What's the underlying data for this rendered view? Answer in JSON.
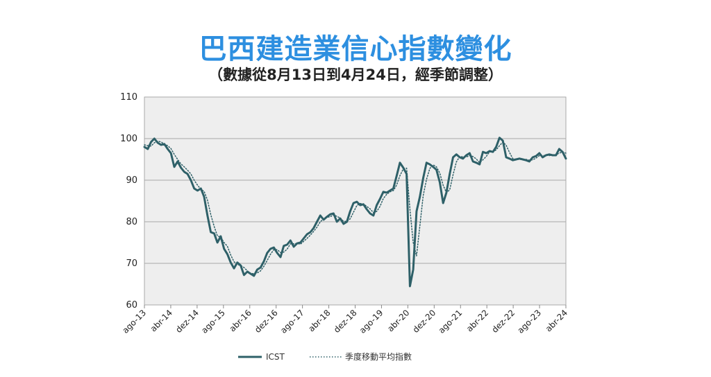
{
  "chart_data": {
    "type": "line",
    "title": "巴西建造業信心指數變化",
    "subtitle": "（數據從8月13日到4月24日，經季節調整）",
    "xlabel": "",
    "ylabel": "",
    "ylim": [
      60,
      110
    ],
    "yticks": [
      60,
      70,
      80,
      90,
      100,
      110
    ],
    "xticks": [
      "ago-13",
      "abr-14",
      "dez-14",
      "ago-15",
      "abr-16",
      "dez-16",
      "ago-17",
      "abr-18",
      "dez-18",
      "ago-19",
      "abr-20",
      "dez-20",
      "ago-21",
      "abr-22",
      "dez-22",
      "ago-23",
      "abr-24"
    ],
    "grid": true,
    "legend_position": "bottom",
    "series": [
      {
        "name": "ICST",
        "color": "#2e6068",
        "style": "solid",
        "values": [
          98.0,
          97.5,
          99.2,
          100.0,
          99.0,
          98.5,
          98.7,
          97.5,
          96.5,
          93.2,
          94.5,
          93.0,
          92.0,
          91.5,
          90.0,
          88.0,
          87.5,
          88.0,
          86.0,
          81.5,
          77.5,
          77.2,
          75.0,
          76.5,
          73.5,
          72.2,
          70.2,
          68.8,
          70.2,
          69.5,
          67.2,
          68.0,
          67.5,
          67.0,
          68.5,
          69.0,
          70.5,
          72.5,
          73.5,
          73.8,
          72.5,
          71.5,
          74.2,
          74.5,
          75.5,
          74.0,
          74.8,
          75.0,
          76.0,
          77.0,
          77.5,
          78.5,
          80.0,
          81.5,
          80.5,
          81.2,
          81.8,
          82.0,
          80.0,
          80.8,
          79.5,
          80.0,
          82.5,
          84.5,
          84.8,
          84.0,
          84.2,
          83.0,
          82.0,
          81.5,
          84.0,
          85.5,
          87.2,
          87.0,
          87.5,
          88.0,
          91.0,
          94.2,
          93.0,
          91.5,
          64.5,
          68.5,
          82.5,
          86.0,
          90.5,
          94.2,
          93.8,
          93.2,
          92.5,
          89.5,
          84.5,
          87.0,
          91.5,
          95.5,
          96.2,
          95.5,
          95.2,
          96.0,
          96.5,
          94.5,
          94.2,
          93.8,
          96.8,
          96.5,
          97.0,
          96.8,
          98.0,
          100.2,
          99.5,
          95.5,
          95.2,
          94.8,
          95.0,
          95.2,
          95.0,
          94.8,
          94.5,
          95.5,
          95.8,
          96.5,
          95.5,
          96.0,
          96.2,
          96.0,
          96.0,
          97.5,
          96.8,
          95.2
        ]
      },
      {
        "name": "季度移動平均指數",
        "color": "#2e6068",
        "style": "dotted",
        "values": [
          98.5,
          98.3,
          98.2,
          99.0,
          99.4,
          99.2,
          98.7,
          98.3,
          97.6,
          96.2,
          95.0,
          93.9,
          93.2,
          92.4,
          91.5,
          90.0,
          88.8,
          87.8,
          87.3,
          85.2,
          81.7,
          78.9,
          76.6,
          76.3,
          75.0,
          74.1,
          72.0,
          70.4,
          69.7,
          69.5,
          69.0,
          68.2,
          67.6,
          67.5,
          67.7,
          68.2,
          69.3,
          70.7,
          72.2,
          73.3,
          73.3,
          72.6,
          72.7,
          73.4,
          74.7,
          74.7,
          74.8,
          74.6,
          75.3,
          76.0,
          76.8,
          77.7,
          78.7,
          80.0,
          80.7,
          81.1,
          81.2,
          81.7,
          81.3,
          80.9,
          80.1,
          80.1,
          80.7,
          82.3,
          83.9,
          84.4,
          84.3,
          83.7,
          83.1,
          82.2,
          82.5,
          83.7,
          85.6,
          86.6,
          87.2,
          87.5,
          88.8,
          91.1,
          92.7,
          92.9,
          83.0,
          75.0,
          71.8,
          79.0,
          86.3,
          90.2,
          92.8,
          93.7,
          93.2,
          91.7,
          88.8,
          87.0,
          87.7,
          91.3,
          94.4,
          95.7,
          95.6,
          95.6,
          95.9,
          95.7,
          95.1,
          94.2,
          94.9,
          95.7,
          96.8,
          96.8,
          97.3,
          98.3,
          99.2,
          98.4,
          96.7,
          95.2,
          95.0,
          95.0,
          95.0,
          95.0,
          94.8,
          94.9,
          95.3,
          95.9,
          95.9,
          96.0,
          95.9,
          96.1,
          96.1,
          96.5,
          96.8,
          96.5
        ]
      }
    ]
  }
}
